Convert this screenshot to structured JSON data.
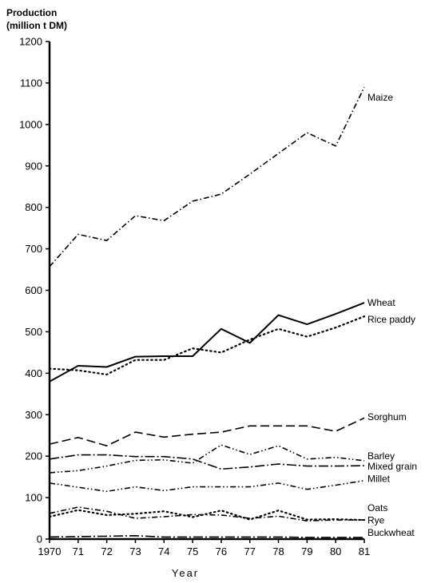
{
  "chart_data": {
    "type": "line",
    "ylabel_line1": "Production",
    "ylabel_line2": "(million t DM)",
    "xlabel": "Year",
    "x": [
      1970,
      1971,
      1972,
      1973,
      1974,
      1975,
      1976,
      1977,
      1978,
      1979,
      1980,
      1981
    ],
    "x_tick_labels": [
      "1970",
      "71",
      "72",
      "73",
      "74",
      "75",
      "76",
      "77",
      "78",
      "79",
      "80",
      "81"
    ],
    "ylim": [
      0,
      1200
    ],
    "y_ticks": [
      0,
      100,
      200,
      300,
      400,
      500,
      600,
      700,
      800,
      900,
      1000,
      1100,
      1200
    ],
    "grid": false,
    "legend": "direct labels at right end of lines",
    "series": [
      {
        "name": "Maize",
        "style": "dash-dot",
        "values": [
          657,
          735,
          720,
          780,
          768,
          815,
          832,
          880,
          930,
          980,
          948,
          1090
        ]
      },
      {
        "name": "Wheat",
        "style": "solid",
        "values": [
          380,
          418,
          415,
          440,
          441,
          441,
          507,
          473,
          540,
          518,
          543,
          570
        ]
      },
      {
        "name": "Rice paddy",
        "style": "dotted",
        "values": [
          411,
          407,
          397,
          432,
          432,
          460,
          450,
          481,
          507,
          488,
          510,
          537
        ]
      },
      {
        "name": "Sorghum",
        "style": "long-dash",
        "values": [
          229,
          245,
          225,
          258,
          246,
          253,
          258,
          273,
          273,
          273,
          260,
          292
        ]
      },
      {
        "name": "Barley",
        "style": "dash-dot-dot",
        "values": [
          160,
          165,
          176,
          190,
          191,
          183,
          227,
          204,
          225,
          193,
          197,
          189
        ]
      },
      {
        "name": "Mixed grain",
        "style": "long-dash-dot",
        "values": [
          193,
          203,
          203,
          199,
          199,
          193,
          169,
          174,
          181,
          176,
          176,
          177
        ]
      },
      {
        "name": "Millet",
        "style": "dash-dot-dot",
        "values": [
          135,
          125,
          115,
          126,
          117,
          126,
          126,
          126,
          135,
          120,
          130,
          141
        ]
      },
      {
        "name": "Oats",
        "style": "dotted",
        "values": [
          54,
          70,
          58,
          61,
          67,
          53,
          69,
          47,
          69,
          47,
          48,
          46
        ]
      },
      {
        "name": "Rye",
        "style": "dash-dot",
        "values": [
          62,
          77,
          67,
          50,
          54,
          59,
          58,
          50,
          55,
          44,
          46,
          46
        ]
      },
      {
        "name": "Buckwheat",
        "style": "long-dash-dot",
        "values": [
          5,
          6,
          7,
          8,
          5,
          5,
          5,
          5,
          5,
          4,
          4,
          4
        ]
      }
    ]
  }
}
